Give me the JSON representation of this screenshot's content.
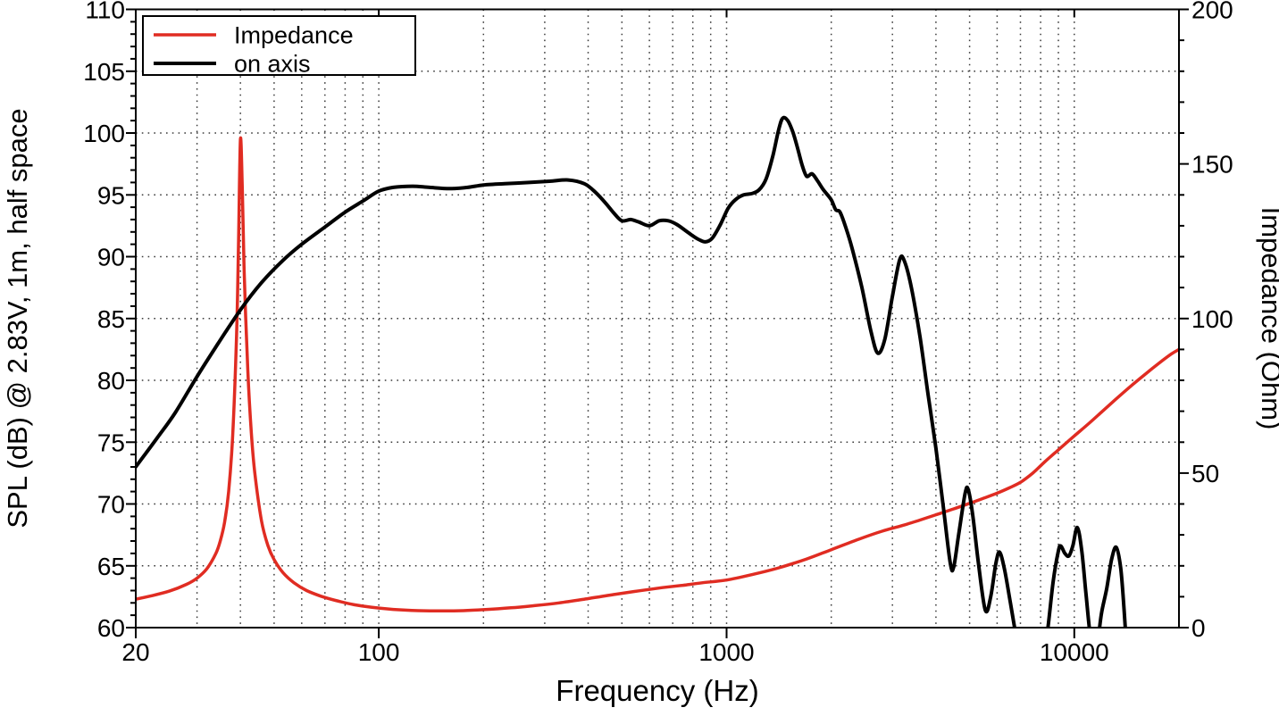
{
  "chart_data": {
    "type": "line",
    "title": "",
    "x_axis": {
      "label": "Frequency (Hz)",
      "scale": "log",
      "min": 20,
      "max": 20000,
      "major_ticks": [
        20,
        100,
        1000,
        10000
      ],
      "major_tick_labels": [
        "20",
        "100",
        "1000",
        "10000"
      ],
      "top_ticks": [
        100,
        1000,
        10000
      ],
      "grid_lines": [
        30,
        40,
        50,
        60,
        70,
        80,
        90,
        100,
        200,
        300,
        400,
        500,
        600,
        700,
        800,
        900,
        1000,
        2000,
        3000,
        4000,
        5000,
        6000,
        7000,
        8000,
        9000,
        10000
      ]
    },
    "y_left_axis": {
      "label": "SPL (dB) @ 2.83V, 1m, half space",
      "min": 60,
      "max": 110,
      "major_ticks": [
        60,
        65,
        70,
        75,
        80,
        85,
        90,
        95,
        100,
        105,
        110
      ],
      "major_tick_labels": [
        "60",
        "65",
        "70",
        "75",
        "80",
        "85",
        "90",
        "95",
        "100",
        "105",
        "110"
      ],
      "minor_step": 1,
      "grid_lines": [
        65,
        70,
        75,
        80,
        85,
        90,
        95,
        100,
        105
      ]
    },
    "y_right_axis": {
      "label": "Impedance (Ohm)",
      "min": 0,
      "max": 200,
      "major_ticks": [
        0,
        50,
        100,
        150,
        200
      ],
      "major_tick_labels": [
        "0",
        "50",
        "100",
        "150",
        "200"
      ],
      "minor_step": 10
    },
    "legend": {
      "position": "top-left",
      "entries": [
        {
          "label": "Impedance",
          "color": "#e02c22",
          "axis": "right"
        },
        {
          "label": "on axis",
          "color": "#000000",
          "axis": "left"
        }
      ]
    },
    "series": [
      {
        "name": "Impedance",
        "axis": "right",
        "color": "#e02c22",
        "width": 3.5,
        "points": [
          [
            20,
            9.2
          ],
          [
            22,
            10.2
          ],
          [
            25,
            11.8
          ],
          [
            28,
            14.0
          ],
          [
            30,
            16.0
          ],
          [
            32,
            19.0
          ],
          [
            34,
            24.0
          ],
          [
            35,
            28.0
          ],
          [
            36,
            34.0
          ],
          [
            37,
            44.0
          ],
          [
            38,
            62.0
          ],
          [
            39,
            95.0
          ],
          [
            39.5,
            125.0
          ],
          [
            40,
            158.0
          ],
          [
            40.5,
            142.0
          ],
          [
            41,
            115.0
          ],
          [
            42,
            83.0
          ],
          [
            43,
            63.0
          ],
          [
            44,
            50.0
          ],
          [
            46,
            34.5
          ],
          [
            48,
            26.5
          ],
          [
            50,
            22.0
          ],
          [
            53,
            17.8
          ],
          [
            57,
            14.5
          ],
          [
            62,
            12.0
          ],
          [
            68,
            10.2
          ],
          [
            75,
            8.8
          ],
          [
            85,
            7.4
          ],
          [
            95,
            6.6
          ],
          [
            110,
            5.9
          ],
          [
            130,
            5.5
          ],
          [
            150,
            5.4
          ],
          [
            175,
            5.5
          ],
          [
            200,
            5.8
          ],
          [
            240,
            6.4
          ],
          [
            280,
            7.1
          ],
          [
            330,
            8.0
          ],
          [
            400,
            9.4
          ],
          [
            480,
            10.8
          ],
          [
            560,
            11.9
          ],
          [
            650,
            12.9
          ],
          [
            750,
            13.7
          ],
          [
            850,
            14.5
          ],
          [
            1000,
            15.4
          ],
          [
            1200,
            17.3
          ],
          [
            1400,
            19.2
          ],
          [
            1700,
            22.2
          ],
          [
            2000,
            25.2
          ],
          [
            2400,
            28.6
          ],
          [
            2800,
            31.2
          ],
          [
            3200,
            33.0
          ],
          [
            3600,
            34.8
          ],
          [
            4000,
            36.5
          ],
          [
            4500,
            38.4
          ],
          [
            5000,
            40.2
          ],
          [
            5500,
            41.9
          ],
          [
            6000,
            43.5
          ],
          [
            6500,
            45.2
          ],
          [
            7000,
            47.0
          ],
          [
            7600,
            50.0
          ],
          [
            8200,
            53.5
          ],
          [
            9000,
            57.5
          ],
          [
            10000,
            62.0
          ],
          [
            11000,
            66.0
          ],
          [
            12000,
            69.8
          ],
          [
            13200,
            74.0
          ],
          [
            14500,
            78.0
          ],
          [
            16000,
            82.0
          ],
          [
            17500,
            85.5
          ],
          [
            19000,
            88.5
          ],
          [
            20000,
            90.0
          ]
        ]
      },
      {
        "name": "on axis",
        "axis": "left",
        "color": "#000000",
        "width": 4,
        "points": [
          [
            20,
            73.0
          ],
          [
            23,
            75.3
          ],
          [
            26,
            77.4
          ],
          [
            30,
            80.3
          ],
          [
            34,
            82.7
          ],
          [
            40,
            85.7
          ],
          [
            46,
            87.9
          ],
          [
            53,
            89.7
          ],
          [
            60,
            91.0
          ],
          [
            70,
            92.4
          ],
          [
            80,
            93.6
          ],
          [
            90,
            94.5
          ],
          [
            100,
            95.3
          ],
          [
            110,
            95.6
          ],
          [
            125,
            95.7
          ],
          [
            140,
            95.6
          ],
          [
            160,
            95.5
          ],
          [
            180,
            95.6
          ],
          [
            200,
            95.8
          ],
          [
            230,
            95.9
          ],
          [
            270,
            96.0
          ],
          [
            310,
            96.1
          ],
          [
            350,
            96.2
          ],
          [
            390,
            95.9
          ],
          [
            420,
            95.2
          ],
          [
            450,
            94.3
          ],
          [
            475,
            93.5
          ],
          [
            500,
            92.9
          ],
          [
            530,
            93.0
          ],
          [
            560,
            92.8
          ],
          [
            600,
            92.5
          ],
          [
            640,
            92.9
          ],
          [
            680,
            92.9
          ],
          [
            720,
            92.6
          ],
          [
            780,
            91.9
          ],
          [
            830,
            91.4
          ],
          [
            870,
            91.2
          ],
          [
            910,
            91.5
          ],
          [
            960,
            92.6
          ],
          [
            1010,
            93.9
          ],
          [
            1060,
            94.6
          ],
          [
            1120,
            95.0
          ],
          [
            1180,
            95.1
          ],
          [
            1240,
            95.4
          ],
          [
            1300,
            96.3
          ],
          [
            1360,
            98.2
          ],
          [
            1410,
            100.2
          ],
          [
            1450,
            101.2
          ],
          [
            1500,
            101.0
          ],
          [
            1550,
            100.1
          ],
          [
            1600,
            98.8
          ],
          [
            1650,
            97.4
          ],
          [
            1700,
            96.5
          ],
          [
            1760,
            96.7
          ],
          [
            1820,
            96.2
          ],
          [
            1900,
            95.4
          ],
          [
            2000,
            94.6
          ],
          [
            2060,
            93.8
          ],
          [
            2120,
            93.6
          ],
          [
            2200,
            92.4
          ],
          [
            2300,
            90.6
          ],
          [
            2450,
            87.5
          ],
          [
            2600,
            84.0
          ],
          [
            2720,
            82.2
          ],
          [
            2850,
            83.3
          ],
          [
            3000,
            86.8
          ],
          [
            3150,
            89.8
          ],
          [
            3250,
            89.6
          ],
          [
            3400,
            87.5
          ],
          [
            3600,
            83.5
          ],
          [
            3800,
            78.8
          ],
          [
            4000,
            74.5
          ],
          [
            4200,
            69.8
          ],
          [
            4400,
            65.2
          ],
          [
            4500,
            64.9
          ],
          [
            4650,
            67.5
          ],
          [
            4850,
            70.8
          ],
          [
            4950,
            71.2
          ],
          [
            5100,
            69.2
          ],
          [
            5300,
            65.2
          ],
          [
            5550,
            61.4
          ],
          [
            5750,
            62.5
          ],
          [
            5950,
            65.2
          ],
          [
            6100,
            66.1
          ],
          [
            6300,
            64.7
          ],
          [
            6550,
            62.0
          ],
          [
            6800,
            59.3
          ],
          [
            7100,
            56.0
          ],
          [
            7600,
            54.5
          ],
          [
            8100,
            57.0
          ],
          [
            8400,
            60.0
          ],
          [
            8700,
            63.8
          ],
          [
            9000,
            66.2
          ],
          [
            9150,
            66.6
          ],
          [
            9400,
            66.0
          ],
          [
            9650,
            65.8
          ],
          [
            9900,
            66.6
          ],
          [
            10200,
            68.1
          ],
          [
            10500,
            66.3
          ],
          [
            10800,
            62.8
          ],
          [
            11100,
            59.5
          ],
          [
            11500,
            57.0
          ],
          [
            11800,
            59.8
          ],
          [
            12000,
            61.3
          ],
          [
            12400,
            63.2
          ],
          [
            12800,
            65.5
          ],
          [
            13200,
            66.5
          ],
          [
            13600,
            64.8
          ],
          [
            13900,
            61.5
          ],
          [
            14200,
            57.5
          ]
        ]
      }
    ],
    "grid_style": "dotted",
    "colors": {
      "background": "#ffffff",
      "axis": "#000000",
      "grid": "#3a3a3a",
      "impedance_curve": "#e02c22",
      "on_axis_curve": "#000000"
    }
  }
}
